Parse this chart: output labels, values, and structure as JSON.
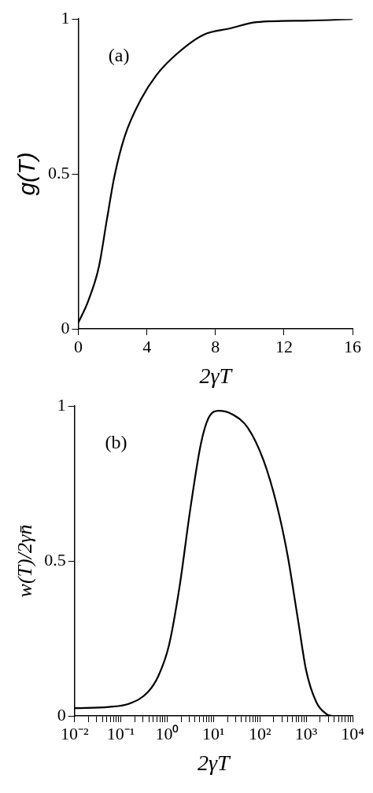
{
  "chart_data": [
    {
      "type": "line",
      "xlabel": "2γT",
      "ylabel": "g(T)",
      "annotations": [
        "(a)"
      ],
      "marker": "none",
      "xlim": [
        0,
        16
      ],
      "xticks": [
        0,
        4,
        8,
        12,
        16
      ],
      "ylim": [
        0,
        1
      ],
      "yticks": [
        0,
        0.5,
        1
      ],
      "series": [
        {
          "color": "#000000",
          "x": [
            0,
            0.58,
            1.2,
            1.66,
            2.1,
            2.7,
            3.65,
            4.57,
            5.8,
            7.33,
            8.87,
            10.4,
            13.5,
            16
          ],
          "values": [
            0.02,
            0.09,
            0.2,
            0.35,
            0.49,
            0.62,
            0.74,
            0.82,
            0.89,
            0.95,
            0.97,
            0.99,
            0.995,
            1
          ]
        }
      ]
    },
    {
      "type": "line",
      "xlabel": "2γT",
      "ylabel": "w(T)/2γn̄",
      "annotations": [
        "(b)"
      ],
      "marker": "none",
      "log": "x",
      "xlim": [
        0.01,
        10000
      ],
      "xticks": [
        {
          "value": 0.01,
          "label": "10⁻²"
        },
        {
          "value": 0.02,
          "label": null
        },
        {
          "value": 0.03,
          "label": null
        },
        {
          "value": 0.04,
          "label": null
        },
        {
          "value": 0.05,
          "label": null
        },
        {
          "value": 0.06,
          "label": null
        },
        {
          "value": 0.07,
          "label": null
        },
        {
          "value": 0.08,
          "label": null
        },
        {
          "value": 0.09,
          "label": null
        },
        {
          "value": 0.1,
          "label": "10⁻¹"
        },
        {
          "value": 0.2,
          "label": null
        },
        {
          "value": 0.3,
          "label": null
        },
        {
          "value": 0.4,
          "label": null
        },
        {
          "value": 0.5,
          "label": null
        },
        {
          "value": 0.6,
          "label": null
        },
        {
          "value": 0.7,
          "label": null
        },
        {
          "value": 0.8,
          "label": null
        },
        {
          "value": 0.9,
          "label": null
        },
        {
          "value": 1,
          "label": "10⁰"
        },
        {
          "value": 2,
          "label": null
        },
        {
          "value": 3,
          "label": null
        },
        {
          "value": 4,
          "label": null
        },
        {
          "value": 5,
          "label": null
        },
        {
          "value": 6,
          "label": null
        },
        {
          "value": 7,
          "label": null
        },
        {
          "value": 8,
          "label": null
        },
        {
          "value": 9,
          "label": null
        },
        {
          "value": 10,
          "label": "10¹"
        },
        {
          "value": 20,
          "label": null
        },
        {
          "value": 30,
          "label": null
        },
        {
          "value": 40,
          "label": null
        },
        {
          "value": 50,
          "label": null
        },
        {
          "value": 60,
          "label": null
        },
        {
          "value": 70,
          "label": null
        },
        {
          "value": 80,
          "label": null
        },
        {
          "value": 90,
          "label": null
        },
        {
          "value": 100,
          "label": "10²"
        },
        {
          "value": 200,
          "label": null
        },
        {
          "value": 300,
          "label": null
        },
        {
          "value": 400,
          "label": null
        },
        {
          "value": 500,
          "label": null
        },
        {
          "value": 600,
          "label": null
        },
        {
          "value": 700,
          "label": null
        },
        {
          "value": 800,
          "label": null
        },
        {
          "value": 900,
          "label": null
        },
        {
          "value": 1000,
          "label": "10³"
        },
        {
          "value": 2000,
          "label": null
        },
        {
          "value": 3000,
          "label": null
        },
        {
          "value": 4000,
          "label": null
        },
        {
          "value": 5000,
          "label": null
        },
        {
          "value": 6000,
          "label": null
        },
        {
          "value": 7000,
          "label": null
        },
        {
          "value": 8000,
          "label": null
        },
        {
          "value": 9000,
          "label": null
        },
        {
          "value": 10000,
          "label": "10⁴"
        }
      ],
      "ylim": [
        0,
        1
      ],
      "yticks": [
        0,
        0.5,
        1
      ],
      "series": [
        {
          "color": "#000000",
          "x": [
            0.01,
            0.055,
            0.155,
            0.39,
            0.65,
            1.1,
            1.86,
            3.1,
            5.3,
            7.7,
            13,
            25,
            55,
            120,
            233,
            395,
            665,
            1000,
            1660,
            2800,
            3600
          ],
          "values": [
            0.025,
            0.029,
            0.04,
            0.078,
            0.13,
            0.23,
            0.42,
            0.66,
            0.876,
            0.96,
            0.985,
            0.974,
            0.93,
            0.825,
            0.68,
            0.52,
            0.31,
            0.146,
            0.044,
            0.005,
            0
          ]
        }
      ]
    }
  ]
}
